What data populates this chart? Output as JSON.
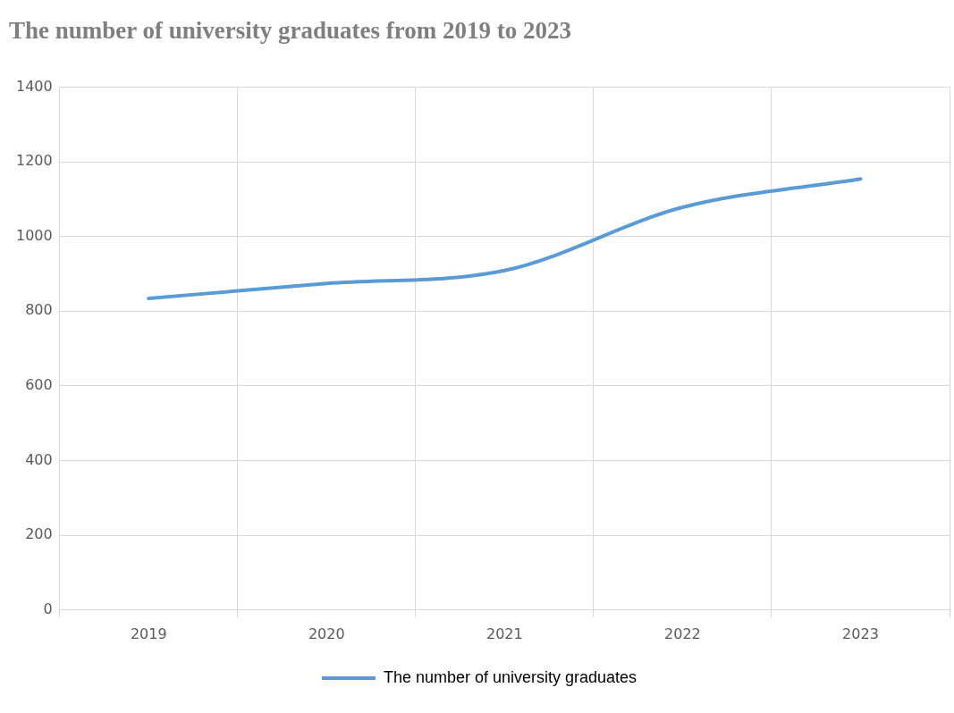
{
  "chart_data": {
    "type": "line",
    "title": "The number of university graduates from 2019 to 2023",
    "categories": [
      "2019",
      "2020",
      "2021",
      "2022",
      "2023"
    ],
    "series": [
      {
        "name": "The number of university graduates",
        "color": "#5b9bd5",
        "values": [
          834,
          874,
          909,
          1078,
          1154
        ]
      }
    ],
    "ylim": [
      0,
      1400
    ],
    "yticks": [
      0,
      200,
      400,
      600,
      800,
      1000,
      1200,
      1400
    ],
    "grid": true,
    "legend": "bottom",
    "marker": "none"
  }
}
